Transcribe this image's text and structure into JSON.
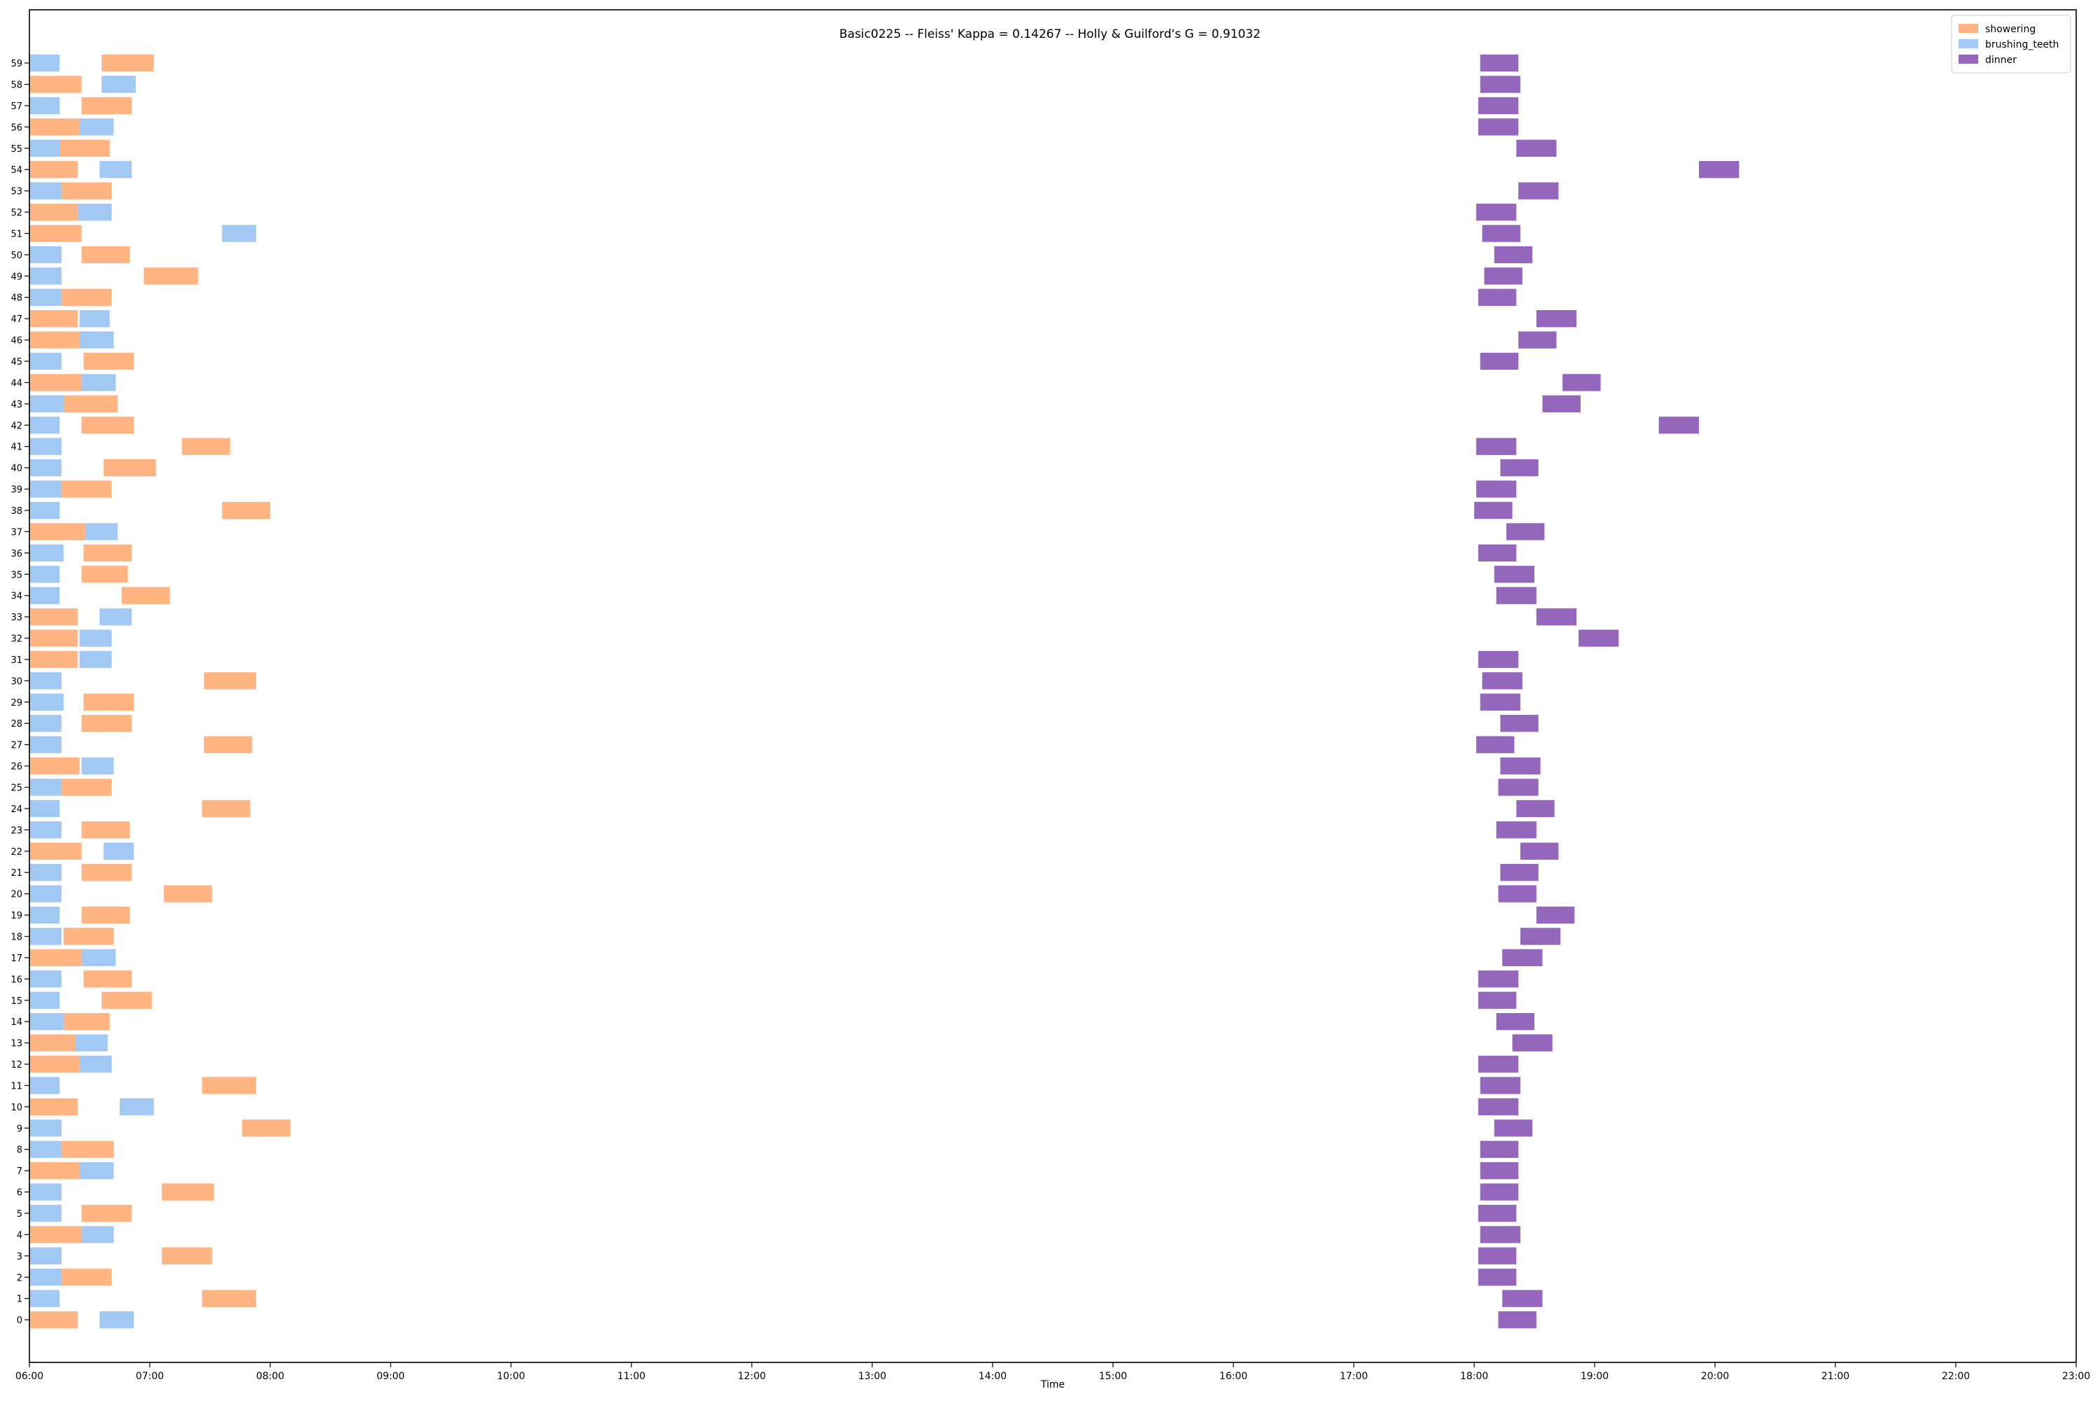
{
  "chart_data": {
    "type": "timeline",
    "title": "Basic0225 -- Fleiss' Kappa = 0.14267 -- Holly & Guilford's G = 0.91032",
    "xlabel": "Time",
    "ylabel": "",
    "xlim": [
      "06:00",
      "23:00"
    ],
    "x_ticks": [
      "06:00",
      "07:00",
      "08:00",
      "09:00",
      "10:00",
      "11:00",
      "12:00",
      "13:00",
      "14:00",
      "15:00",
      "16:00",
      "17:00",
      "18:00",
      "19:00",
      "20:00",
      "21:00",
      "22:00",
      "23:00"
    ],
    "y_ticks": [
      "0",
      "1",
      "2",
      "3",
      "4",
      "5",
      "6",
      "7",
      "8",
      "9",
      "10",
      "11",
      "12",
      "13",
      "14",
      "15",
      "16",
      "17",
      "18",
      "19",
      "20",
      "21",
      "22",
      "23",
      "24",
      "25",
      "26",
      "27",
      "28",
      "29",
      "30",
      "31",
      "32",
      "33",
      "34",
      "35",
      "36",
      "37",
      "38",
      "39",
      "40",
      "41",
      "42",
      "43",
      "44",
      "45",
      "46",
      "47",
      "48",
      "49",
      "50",
      "51",
      "52",
      "53",
      "54",
      "55",
      "56",
      "57",
      "58",
      "59"
    ],
    "ylim": [
      -2,
      61.5
    ],
    "grid": false,
    "legend_position": "top-right",
    "series": [
      {
        "name": "showering",
        "color": "#ffb482"
      },
      {
        "name": "brushing_teeth",
        "color": "#a1c9f4"
      },
      {
        "name": "dinner",
        "color": "#9467bd"
      }
    ],
    "rows": [
      {
        "y": 0,
        "showering": [
          "06:00",
          "06:24"
        ],
        "brushing_teeth": [
          "06:35",
          "06:52"
        ],
        "dinner": [
          "18:12",
          "18:31"
        ]
      },
      {
        "y": 1,
        "showering": [
          "07:26",
          "07:53"
        ],
        "brushing_teeth": [
          "06:00",
          "06:15"
        ],
        "dinner": [
          "18:14",
          "18:34"
        ]
      },
      {
        "y": 2,
        "showering": [
          "06:16",
          "06:41"
        ],
        "brushing_teeth": [
          "06:00",
          "06:16"
        ],
        "dinner": [
          "18:02",
          "18:21"
        ]
      },
      {
        "y": 3,
        "showering": [
          "07:06",
          "07:31"
        ],
        "brushing_teeth": [
          "06:00",
          "06:16"
        ],
        "dinner": [
          "18:02",
          "18:21"
        ]
      },
      {
        "y": 4,
        "showering": [
          "06:00",
          "06:26"
        ],
        "brushing_teeth": [
          "06:26",
          "06:42"
        ],
        "dinner": [
          "18:03",
          "18:23"
        ]
      },
      {
        "y": 5,
        "showering": [
          "06:26",
          "06:51"
        ],
        "brushing_teeth": [
          "06:00",
          "06:16"
        ],
        "dinner": [
          "18:02",
          "18:21"
        ]
      },
      {
        "y": 6,
        "showering": [
          "07:06",
          "07:32"
        ],
        "brushing_teeth": [
          "06:00",
          "06:16"
        ],
        "dinner": [
          "18:03",
          "18:22"
        ]
      },
      {
        "y": 7,
        "showering": [
          "06:00",
          "06:25"
        ],
        "brushing_teeth": [
          "06:25",
          "06:42"
        ],
        "dinner": [
          "18:03",
          "18:22"
        ]
      },
      {
        "y": 8,
        "showering": [
          "06:16",
          "06:42"
        ],
        "brushing_teeth": [
          "06:00",
          "06:16"
        ],
        "dinner": [
          "18:03",
          "18:22"
        ]
      },
      {
        "y": 9,
        "showering": [
          "07:46",
          "08:10"
        ],
        "brushing_teeth": [
          "06:00",
          "06:16"
        ],
        "dinner": [
          "18:10",
          "18:29"
        ]
      },
      {
        "y": 10,
        "showering": [
          "06:00",
          "06:24"
        ],
        "brushing_teeth": [
          "06:45",
          "07:02"
        ],
        "dinner": [
          "18:02",
          "18:22"
        ]
      },
      {
        "y": 11,
        "showering": [
          "07:26",
          "07:53"
        ],
        "brushing_teeth": [
          "06:00",
          "06:15"
        ],
        "dinner": [
          "18:03",
          "18:23"
        ]
      },
      {
        "y": 12,
        "showering": [
          "06:00",
          "06:25"
        ],
        "brushing_teeth": [
          "06:25",
          "06:41"
        ],
        "dinner": [
          "18:02",
          "18:22"
        ]
      },
      {
        "y": 13,
        "showering": [
          "06:00",
          "06:23"
        ],
        "brushing_teeth": [
          "06:23",
          "06:39"
        ],
        "dinner": [
          "18:19",
          "18:39"
        ]
      },
      {
        "y": 14,
        "showering": [
          "06:17",
          "06:40"
        ],
        "brushing_teeth": [
          "06:00",
          "06:17"
        ],
        "dinner": [
          "18:11",
          "18:30"
        ]
      },
      {
        "y": 15,
        "showering": [
          "06:36",
          "07:01"
        ],
        "brushing_teeth": [
          "06:00",
          "06:15"
        ],
        "dinner": [
          "18:02",
          "18:21"
        ]
      },
      {
        "y": 16,
        "showering": [
          "06:27",
          "06:51"
        ],
        "brushing_teeth": [
          "06:00",
          "06:16"
        ],
        "dinner": [
          "18:02",
          "18:22"
        ]
      },
      {
        "y": 17,
        "showering": [
          "06:00",
          "06:26"
        ],
        "brushing_teeth": [
          "06:26",
          "06:43"
        ],
        "dinner": [
          "18:14",
          "18:34"
        ]
      },
      {
        "y": 18,
        "showering": [
          "06:17",
          "06:42"
        ],
        "brushing_teeth": [
          "06:00",
          "06:16"
        ],
        "dinner": [
          "18:23",
          "18:43"
        ]
      },
      {
        "y": 19,
        "showering": [
          "06:26",
          "06:50"
        ],
        "brushing_teeth": [
          "06:00",
          "06:15"
        ],
        "dinner": [
          "18:31",
          "18:50"
        ]
      },
      {
        "y": 20,
        "showering": [
          "07:07",
          "07:31"
        ],
        "brushing_teeth": [
          "06:00",
          "06:16"
        ],
        "dinner": [
          "18:12",
          "18:31"
        ]
      },
      {
        "y": 21,
        "showering": [
          "06:26",
          "06:51"
        ],
        "brushing_teeth": [
          "06:00",
          "06:16"
        ],
        "dinner": [
          "18:13",
          "18:32"
        ]
      },
      {
        "y": 22,
        "showering": [
          "06:00",
          "06:26"
        ],
        "brushing_teeth": [
          "06:37",
          "06:52"
        ],
        "dinner": [
          "18:23",
          "18:42"
        ]
      },
      {
        "y": 23,
        "showering": [
          "06:26",
          "06:50"
        ],
        "brushing_teeth": [
          "06:00",
          "06:16"
        ],
        "dinner": [
          "18:11",
          "18:31"
        ]
      },
      {
        "y": 24,
        "showering": [
          "07:26",
          "07:50"
        ],
        "brushing_teeth": [
          "06:00",
          "06:15"
        ],
        "dinner": [
          "18:21",
          "18:40"
        ]
      },
      {
        "y": 25,
        "showering": [
          "06:16",
          "06:41"
        ],
        "brushing_teeth": [
          "06:00",
          "06:16"
        ],
        "dinner": [
          "18:12",
          "18:32"
        ]
      },
      {
        "y": 26,
        "showering": [
          "06:00",
          "06:25"
        ],
        "brushing_teeth": [
          "06:26",
          "06:42"
        ],
        "dinner": [
          "18:13",
          "18:33"
        ]
      },
      {
        "y": 27,
        "showering": [
          "07:27",
          "07:51"
        ],
        "brushing_teeth": [
          "06:00",
          "06:16"
        ],
        "dinner": [
          "18:01",
          "18:20"
        ]
      },
      {
        "y": 28,
        "showering": [
          "06:26",
          "06:51"
        ],
        "brushing_teeth": [
          "06:00",
          "06:16"
        ],
        "dinner": [
          "18:13",
          "18:32"
        ]
      },
      {
        "y": 29,
        "showering": [
          "06:27",
          "06:52"
        ],
        "brushing_teeth": [
          "06:00",
          "06:17"
        ],
        "dinner": [
          "18:03",
          "18:23"
        ]
      },
      {
        "y": 30,
        "showering": [
          "07:27",
          "07:53"
        ],
        "brushing_teeth": [
          "06:00",
          "06:16"
        ],
        "dinner": [
          "18:04",
          "18:24"
        ]
      },
      {
        "y": 31,
        "showering": [
          "06:00",
          "06:24"
        ],
        "brushing_teeth": [
          "06:25",
          "06:41"
        ],
        "dinner": [
          "18:02",
          "18:22"
        ]
      },
      {
        "y": 32,
        "showering": [
          "06:00",
          "06:24"
        ],
        "brushing_teeth": [
          "06:25",
          "06:41"
        ],
        "dinner": [
          "18:52",
          "19:12"
        ]
      },
      {
        "y": 33,
        "showering": [
          "06:00",
          "06:24"
        ],
        "brushing_teeth": [
          "06:35",
          "06:51"
        ],
        "dinner": [
          "18:31",
          "18:51"
        ]
      },
      {
        "y": 34,
        "showering": [
          "06:46",
          "07:10"
        ],
        "brushing_teeth": [
          "06:00",
          "06:15"
        ],
        "dinner": [
          "18:11",
          "18:31"
        ]
      },
      {
        "y": 35,
        "showering": [
          "06:26",
          "06:49"
        ],
        "brushing_teeth": [
          "06:00",
          "06:15"
        ],
        "dinner": [
          "18:10",
          "18:30"
        ]
      },
      {
        "y": 36,
        "showering": [
          "06:27",
          "06:51"
        ],
        "brushing_teeth": [
          "06:00",
          "06:17"
        ],
        "dinner": [
          "18:02",
          "18:21"
        ]
      },
      {
        "y": 37,
        "showering": [
          "06:00",
          "06:28"
        ],
        "brushing_teeth": [
          "06:28",
          "06:44"
        ],
        "dinner": [
          "18:16",
          "18:35"
        ]
      },
      {
        "y": 38,
        "showering": [
          "07:36",
          "08:00"
        ],
        "brushing_teeth": [
          "06:00",
          "06:15"
        ],
        "dinner": [
          "18:00",
          "18:19"
        ]
      },
      {
        "y": 39,
        "showering": [
          "06:16",
          "06:41"
        ],
        "brushing_teeth": [
          "06:00",
          "06:16"
        ],
        "dinner": [
          "18:01",
          "18:21"
        ]
      },
      {
        "y": 40,
        "showering": [
          "06:37",
          "07:03"
        ],
        "brushing_teeth": [
          "06:00",
          "06:16"
        ],
        "dinner": [
          "18:13",
          "18:32"
        ]
      },
      {
        "y": 41,
        "showering": [
          "07:16",
          "07:40"
        ],
        "brushing_teeth": [
          "06:00",
          "06:16"
        ],
        "dinner": [
          "18:01",
          "18:21"
        ]
      },
      {
        "y": 42,
        "showering": [
          "06:26",
          "06:52"
        ],
        "brushing_teeth": [
          "06:00",
          "06:15"
        ],
        "dinner": [
          "19:32",
          "19:52"
        ]
      },
      {
        "y": 43,
        "showering": [
          "06:17",
          "06:44"
        ],
        "brushing_teeth": [
          "06:00",
          "06:17"
        ],
        "dinner": [
          "18:34",
          "18:53"
        ]
      },
      {
        "y": 44,
        "showering": [
          "06:00",
          "06:26"
        ],
        "brushing_teeth": [
          "06:26",
          "06:43"
        ],
        "dinner": [
          "18:44",
          "19:03"
        ]
      },
      {
        "y": 45,
        "showering": [
          "06:27",
          "06:52"
        ],
        "brushing_teeth": [
          "06:00",
          "06:16"
        ],
        "dinner": [
          "18:03",
          "18:22"
        ]
      },
      {
        "y": 46,
        "showering": [
          "06:00",
          "06:25"
        ],
        "brushing_teeth": [
          "06:25",
          "06:42"
        ],
        "dinner": [
          "18:22",
          "18:41"
        ]
      },
      {
        "y": 47,
        "showering": [
          "06:00",
          "06:24"
        ],
        "brushing_teeth": [
          "06:25",
          "06:40"
        ],
        "dinner": [
          "18:31",
          "18:51"
        ]
      },
      {
        "y": 48,
        "showering": [
          "06:16",
          "06:41"
        ],
        "brushing_teeth": [
          "06:00",
          "06:16"
        ],
        "dinner": [
          "18:02",
          "18:21"
        ]
      },
      {
        "y": 49,
        "showering": [
          "06:57",
          "07:24"
        ],
        "brushing_teeth": [
          "06:00",
          "06:16"
        ],
        "dinner": [
          "18:05",
          "18:24"
        ]
      },
      {
        "y": 50,
        "showering": [
          "06:26",
          "06:50"
        ],
        "brushing_teeth": [
          "06:00",
          "06:16"
        ],
        "dinner": [
          "18:10",
          "18:29"
        ]
      },
      {
        "y": 51,
        "showering": [
          "06:00",
          "06:26"
        ],
        "brushing_teeth": [
          "07:36",
          "07:53"
        ],
        "dinner": [
          "18:04",
          "18:23"
        ]
      },
      {
        "y": 52,
        "showering": [
          "06:00",
          "06:24"
        ],
        "brushing_teeth": [
          "06:24",
          "06:41"
        ],
        "dinner": [
          "18:01",
          "18:21"
        ]
      },
      {
        "y": 53,
        "showering": [
          "06:16",
          "06:41"
        ],
        "brushing_teeth": [
          "06:00",
          "06:16"
        ],
        "dinner": [
          "18:22",
          "18:42"
        ]
      },
      {
        "y": 54,
        "showering": [
          "06:00",
          "06:24"
        ],
        "brushing_teeth": [
          "06:35",
          "06:51"
        ],
        "dinner": [
          "19:52",
          "20:12"
        ]
      },
      {
        "y": 55,
        "showering": [
          "06:15",
          "06:40"
        ],
        "brushing_teeth": [
          "06:00",
          "06:15"
        ],
        "dinner": [
          "18:21",
          "18:41"
        ]
      },
      {
        "y": 56,
        "showering": [
          "06:00",
          "06:25"
        ],
        "brushing_teeth": [
          "06:25",
          "06:42"
        ],
        "dinner": [
          "18:02",
          "18:22"
        ]
      },
      {
        "y": 57,
        "showering": [
          "06:26",
          "06:51"
        ],
        "brushing_teeth": [
          "06:00",
          "06:15"
        ],
        "dinner": [
          "18:02",
          "18:22"
        ]
      },
      {
        "y": 58,
        "showering": [
          "06:00",
          "06:26"
        ],
        "brushing_teeth": [
          "06:36",
          "06:53"
        ],
        "dinner": [
          "18:03",
          "18:23"
        ]
      },
      {
        "y": 59,
        "showering": [
          "06:36",
          "07:02"
        ],
        "brushing_teeth": [
          "06:00",
          "06:15"
        ],
        "dinner": [
          "18:03",
          "18:22"
        ]
      }
    ]
  }
}
